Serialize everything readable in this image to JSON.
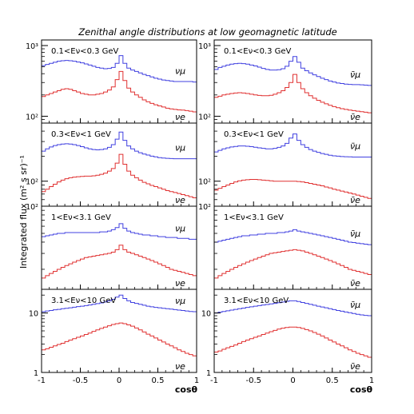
{
  "title": "Zenithal angle distributions at low geomagnetic latitude",
  "ylabel": "Integrated flux (m² s sr)⁻¹",
  "xlabel": "cosθ",
  "colors": {
    "mu": "#4040e0",
    "e": "#e03030",
    "frame": "#000000"
  },
  "chart_data": {
    "type": "line",
    "x_bin_edges": [
      -1.0,
      -0.95,
      -0.9,
      -0.85,
      -0.8,
      -0.75,
      -0.7,
      -0.65,
      -0.6,
      -0.55,
      -0.5,
      -0.45,
      -0.4,
      -0.35,
      -0.3,
      -0.25,
      -0.2,
      -0.15,
      -0.1,
      -0.05,
      0.0,
      0.05,
      0.1,
      0.15,
      0.2,
      0.25,
      0.3,
      0.35,
      0.4,
      0.45,
      0.5,
      0.55,
      0.6,
      0.65,
      0.7,
      0.75,
      0.8,
      0.85,
      0.9,
      0.95,
      1.0
    ],
    "xlim": [
      -1,
      1
    ],
    "x_ticks": [
      -1,
      -0.5,
      0,
      0.5,
      1
    ],
    "x_tick_labels": [
      "-1",
      "-0.5",
      "0",
      "0.5",
      "1"
    ],
    "panels": [
      {
        "label": "0.1<Eν<0.3 GeV",
        "row": 0,
        "col": 0,
        "ylog": true,
        "ylim": [
          80,
          1200
        ],
        "y_ticks": [
          100,
          1000
        ],
        "y_tick_labels": [
          "10²",
          "10³"
        ],
        "series": [
          {
            "name": "νμ",
            "values": [
              520,
              540,
              560,
              580,
              600,
              610,
              615,
              610,
              600,
              585,
              570,
              550,
              530,
              510,
              490,
              480,
              470,
              475,
              490,
              560,
              720,
              560,
              480,
              450,
              430,
              410,
              390,
              375,
              360,
              345,
              335,
              325,
              320,
              315,
              310,
              310,
              310,
              310,
              310,
              305
            ]
          },
          {
            "name": "νe",
            "values": [
              190,
              200,
              210,
              220,
              230,
              240,
              245,
              240,
              230,
              220,
              210,
              205,
              200,
              200,
              205,
              210,
              220,
              235,
              260,
              330,
              430,
              320,
              250,
              220,
              200,
              185,
              170,
              160,
              152,
              145,
              140,
              135,
              130,
              127,
              125,
              123,
              122,
              120,
              118,
              115
            ]
          }
        ]
      },
      {
        "label": "0.1<Eν<0.3 GeV",
        "row": 0,
        "col": 1,
        "ylog": true,
        "ylim": [
          80,
          1200
        ],
        "y_ticks": [
          100,
          1000
        ],
        "y_tick_labels": [
          "10²",
          "10³"
        ],
        "series": [
          {
            "name": "ν̄μ",
            "values": [
              460,
              490,
              510,
              530,
              545,
              555,
              560,
              555,
              545,
              530,
              515,
              495,
              475,
              460,
              450,
              450,
              455,
              470,
              510,
              600,
              700,
              580,
              480,
              440,
              410,
              385,
              365,
              345,
              330,
              315,
              305,
              295,
              290,
              285,
              282,
              280,
              280,
              278,
              276,
              273
            ]
          },
          {
            "name": "ν̄e",
            "values": [
              185,
              192,
              200,
              205,
              210,
              213,
              215,
              213,
              210,
              205,
              200,
              197,
              195,
              195,
              198,
              205,
              215,
              230,
              255,
              300,
              390,
              300,
              245,
              215,
              195,
              180,
              168,
              158,
              150,
              143,
              137,
              132,
              128,
              125,
              122,
              120,
              118,
              116,
              114,
              112
            ]
          }
        ]
      },
      {
        "label": "0.3<Eν<1 GeV",
        "row": 1,
        "col": 0,
        "ylog": true,
        "ylim": [
          50,
          500
        ],
        "y_ticks": [
          100
        ],
        "y_tick_labels": [
          "10²"
        ],
        "series": [
          {
            "name": "νμ",
            "values": [
              230,
              245,
              258,
              268,
              275,
              280,
              282,
              280,
              275,
              268,
              260,
              252,
              245,
              240,
              238,
              240,
              245,
              255,
              275,
              320,
              390,
              310,
              265,
              245,
              230,
              220,
              212,
              206,
              200,
              196,
              192,
              190,
              188,
              187,
              186,
              186,
              186,
              186,
              186,
              186
            ]
          },
          {
            "name": "νe",
            "values": [
              75,
              80,
              86,
              92,
              98,
              103,
              107,
              110,
              112,
              113,
              114,
              115,
              115,
              116,
              118,
              121,
              125,
              132,
              142,
              165,
              210,
              160,
              132,
              118,
              110,
              103,
              97,
              93,
              89,
              86,
              83,
              80,
              77,
              75,
              73,
              71,
              69,
              67,
              65,
              63
            ]
          }
        ]
      },
      {
        "label": "0.3<Eν<1 GeV",
        "row": 1,
        "col": 1,
        "ylog": true,
        "ylim": [
          50,
          500
        ],
        "y_ticks": [
          100
        ],
        "y_tick_labels": [
          "10²"
        ],
        "series": [
          {
            "name": "ν̄μ",
            "values": [
              225,
              235,
              245,
              252,
              258,
              262,
              265,
              265,
              263,
              260,
              256,
              252,
              248,
              245,
              245,
              248,
              255,
              265,
              285,
              330,
              370,
              310,
              275,
              255,
              240,
              230,
              222,
              215,
              210,
              205,
              202,
              200,
              198,
              197,
              196,
              195,
              195,
              195,
              195,
              195
            ]
          },
          {
            "name": "ν̄e",
            "values": [
              78,
              82,
              86,
              90,
              94,
              98,
              101,
              103,
              104,
              105,
              105,
              104,
              103,
              102,
              101,
              100,
              100,
              100,
              100,
              100,
              100,
              99,
              98,
              96,
              94,
              92,
              90,
              88,
              85,
              83,
              80,
              78,
              76,
              74,
              72,
              70,
              68,
              66,
              64,
              62
            ]
          }
        ]
      },
      {
        "label": "1<Eν<3.1 GeV",
        "row": 2,
        "col": 0,
        "ylog": true,
        "ylim": [
          12,
          100
        ],
        "y_ticks": [
          100
        ],
        "y_tick_labels": [
          "10²"
        ],
        "series": [
          {
            "name": "νμ",
            "values": [
              46,
              47,
              48,
              49,
              50,
              50,
              51,
              51,
              51,
              51,
              51,
              51,
              51,
              51,
              51,
              52,
              52,
              53,
              55,
              58,
              64,
              57,
              53,
              51,
              50,
              49,
              48,
              48,
              47,
              47,
              46,
              46,
              45,
              45,
              45,
              44,
              44,
              44,
              43,
              43
            ]
          },
          {
            "name": "νe",
            "values": [
              16,
              17,
              18,
              19,
              20,
              21,
              22,
              23,
              24,
              25,
              26,
              27,
              27.5,
              28,
              28.5,
              29,
              29.5,
              30,
              31,
              33,
              37,
              33,
              31,
              30,
              29,
              28,
              27,
              26,
              25,
              24,
              23,
              22,
              21,
              20,
              19.5,
              19,
              18.5,
              18,
              17.5,
              17
            ]
          }
        ]
      },
      {
        "label": "1<Eν<3.1 GeV",
        "row": 2,
        "col": 1,
        "ylog": true,
        "ylim": [
          12,
          100
        ],
        "y_ticks": [
          100
        ],
        "y_tick_labels": [
          "10²"
        ],
        "series": [
          {
            "name": "ν̄μ",
            "values": [
              40,
              41,
              42,
              43,
              44,
              45,
              46,
              47,
              47,
              48,
              48,
              49,
              49,
              50,
              50,
              50,
              51,
              51,
              52,
              53,
              55,
              53,
              52,
              51,
              50,
              49,
              48,
              47,
              46,
              45,
              44,
              43,
              42,
              41,
              40,
              39.5,
              39,
              38.5,
              38,
              37.5
            ]
          },
          {
            "name": "ν̄e",
            "values": [
              16,
              17,
              18,
              19,
              20,
              21,
              22,
              23,
              24,
              25,
              26,
              27,
              28,
              29,
              30,
              30.5,
              31,
              31.5,
              32,
              32.5,
              33,
              32.5,
              32,
              31,
              30,
              29,
              28,
              27,
              26,
              25,
              24,
              23,
              22,
              21,
              20,
              19.5,
              19,
              18.5,
              18,
              17.5
            ]
          }
        ]
      },
      {
        "label": "3.1<Eν<10 GeV",
        "row": 3,
        "col": 0,
        "ylog": true,
        "ylim": [
          1,
          25
        ],
        "y_ticks": [
          1,
          10
        ],
        "y_tick_labels": [
          "1",
          "10"
        ],
        "series": [
          {
            "name": "νμ",
            "values": [
              10.5,
              10.8,
              11,
              11.3,
              11.5,
              11.8,
              12,
              12.2,
              12.5,
              12.8,
              13,
              13.3,
              13.6,
              14,
              14.4,
              14.8,
              15.3,
              16,
              17,
              18.5,
              20,
              17.5,
              16,
              15,
              14.5,
              14,
              13.5,
              13,
              12.7,
              12.4,
              12.2,
              12,
              11.8,
              11.6,
              11.4,
              11.2,
              11,
              10.8,
              10.6,
              10.5
            ]
          },
          {
            "name": "νe",
            "values": [
              2.4,
              2.5,
              2.65,
              2.8,
              2.95,
              3.1,
              3.3,
              3.5,
              3.7,
              3.9,
              4.1,
              4.35,
              4.6,
              4.9,
              5.2,
              5.5,
              5.8,
              6.1,
              6.4,
              6.6,
              6.8,
              6.6,
              6.3,
              6,
              5.6,
              5.2,
              4.8,
              4.4,
              4.1,
              3.8,
              3.5,
              3.25,
              3,
              2.8,
              2.6,
              2.4,
              2.25,
              2.1,
              2,
              1.9
            ]
          }
        ]
      },
      {
        "label": "3.1<Eν<10 GeV",
        "row": 3,
        "col": 1,
        "ylog": true,
        "ylim": [
          1,
          25
        ],
        "y_ticks": [
          1,
          10
        ],
        "y_tick_labels": [
          "1",
          "10"
        ],
        "series": [
          {
            "name": "ν̄μ",
            "values": [
              10,
              10.3,
              10.6,
              10.9,
              11.2,
              11.5,
              11.8,
              12.1,
              12.4,
              12.7,
              13,
              13.3,
              13.6,
              13.9,
              14.2,
              14.5,
              14.9,
              15.3,
              15.7,
              16,
              16,
              15.6,
              15,
              14.5,
              14,
              13.5,
              13,
              12.6,
              12.2,
              11.8,
              11.4,
              11,
              10.7,
              10.4,
              10.1,
              9.8,
              9.5,
              9.3,
              9.1,
              9
            ]
          },
          {
            "name": "ν̄e",
            "values": [
              2.2,
              2.3,
              2.45,
              2.6,
              2.75,
              2.9,
              3.1,
              3.3,
              3.5,
              3.7,
              3.9,
              4.1,
              4.35,
              4.6,
              4.85,
              5.1,
              5.35,
              5.55,
              5.7,
              5.8,
              5.8,
              5.7,
              5.5,
              5.25,
              5,
              4.7,
              4.4,
              4.1,
              3.8,
              3.5,
              3.25,
              3,
              2.8,
              2.6,
              2.4,
              2.25,
              2.1,
              2,
              1.9,
              1.8
            ]
          }
        ]
      }
    ]
  }
}
